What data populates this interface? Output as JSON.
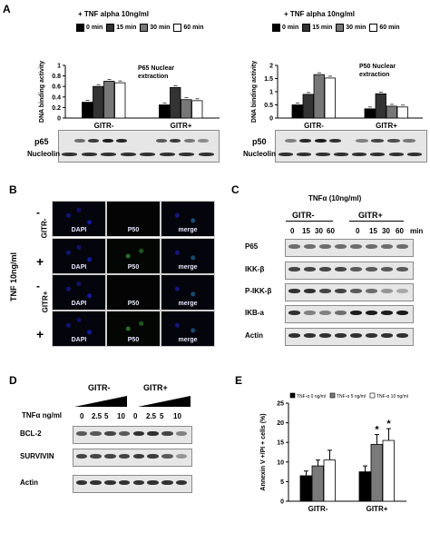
{
  "panels": {
    "A": "A",
    "B": "B",
    "C": "C",
    "D": "D",
    "E": "E"
  },
  "panelA": {
    "treatment": "+ TNF alpha 10ng/ml",
    "legend": [
      {
        "label": "0 min",
        "color": "#000000"
      },
      {
        "label": "15 min",
        "color": "#333333"
      },
      {
        "label": "30 min",
        "color": "#777777"
      },
      {
        "label": "60 min",
        "color": "#ffffff"
      }
    ],
    "left": {
      "ylabel": "DNA binding activity",
      "annotation": "P65 Nuclear\nextraction",
      "groups": [
        "GITR-",
        "GITR+"
      ],
      "blot_labels": [
        "p65",
        "Nucleolin"
      ]
    },
    "right": {
      "ylabel": "DNA binding activity",
      "annotation": "P50 Nuclear\nextraction",
      "groups": [
        "GITR-",
        "GITR+"
      ],
      "blot_labels": [
        "p50",
        "Nucleolin"
      ]
    }
  },
  "panelB": {
    "side_label": "TNF 10ng/ml",
    "rows": [
      {
        "sign": "-",
        "group": "GITR-"
      },
      {
        "sign": "+",
        "group": ""
      },
      {
        "sign": "-",
        "group": "GITR+"
      },
      {
        "sign": "+",
        "group": ""
      }
    ],
    "columns": [
      "DAPI",
      "P50",
      "merge"
    ]
  },
  "panelC": {
    "treatment": "TNFα (10ng/ml)",
    "groups": [
      "GITR-",
      "GITR+"
    ],
    "times": [
      "0",
      "15",
      "30",
      "60",
      "0",
      "15",
      "30",
      "60"
    ],
    "unit": "min",
    "blots": [
      "P65",
      "IKK-β",
      "P-IKK-β",
      "IKB-a",
      "Actin"
    ]
  },
  "panelD": {
    "groups": [
      "GITR-",
      "GITR+"
    ],
    "dose_label": "TNFα ng/ml",
    "doses": [
      "0",
      "2.5",
      "5",
      "10",
      "0",
      "2.5",
      "5",
      "10"
    ],
    "blots": [
      "BCL-2",
      "SURVIVIN",
      "Actin"
    ]
  },
  "chart_data": [
    {
      "type": "bar",
      "title": "P65 Nuclear extraction",
      "ylabel": "DNA binding activity",
      "categories": [
        "GITR-",
        "GITR+"
      ],
      "series": [
        {
          "name": "0 min",
          "values": [
            0.3,
            0.25
          ]
        },
        {
          "name": "15 min",
          "values": [
            0.6,
            0.58
          ]
        },
        {
          "name": "30 min",
          "values": [
            0.7,
            0.35
          ]
        },
        {
          "name": "60 min",
          "values": [
            0.67,
            0.33
          ]
        }
      ],
      "ylim": [
        0,
        1
      ],
      "yticks": [
        "0",
        "0.2",
        "0.4",
        "0.6",
        "0.8",
        "1"
      ]
    },
    {
      "type": "bar",
      "title": "P50 Nuclear extraction",
      "ylabel": "DNA binding activity",
      "categories": [
        "GITR-",
        "GITR+"
      ],
      "series": [
        {
          "name": "0 min",
          "values": [
            0.5,
            0.35
          ]
        },
        {
          "name": "15 min",
          "values": [
            0.9,
            0.92
          ]
        },
        {
          "name": "30 min",
          "values": [
            1.65,
            0.45
          ]
        },
        {
          "name": "60 min",
          "values": [
            1.52,
            0.42
          ]
        }
      ],
      "ylim": [
        0,
        2
      ],
      "yticks": [
        "0",
        "0.5",
        "1",
        "1.5",
        "2"
      ]
    },
    {
      "type": "bar",
      "ylabel": "Annexin V +/PI + cells (%)",
      "categories": [
        "GITR-",
        "GITR+"
      ],
      "series": [
        {
          "name": "TNF-α 0 ng/ml",
          "values": [
            6.5,
            7.5
          ],
          "errors": [
            1.2,
            1.5
          ]
        },
        {
          "name": "TNF-α 5 ng/ml",
          "values": [
            9,
            14.5
          ],
          "errors": [
            1.5,
            2.5
          ]
        },
        {
          "name": "TNF-α 10 ng/ml",
          "values": [
            10.5,
            15.5
          ],
          "errors": [
            2.5,
            3
          ]
        }
      ],
      "ylim": [
        0,
        25
      ],
      "yticks": [
        "0",
        "5",
        "10",
        "15",
        "20",
        "25"
      ],
      "annotations": [
        "*",
        "*"
      ],
      "colors": [
        "#000000",
        "#7a7a7a",
        "#ffffff"
      ]
    }
  ]
}
